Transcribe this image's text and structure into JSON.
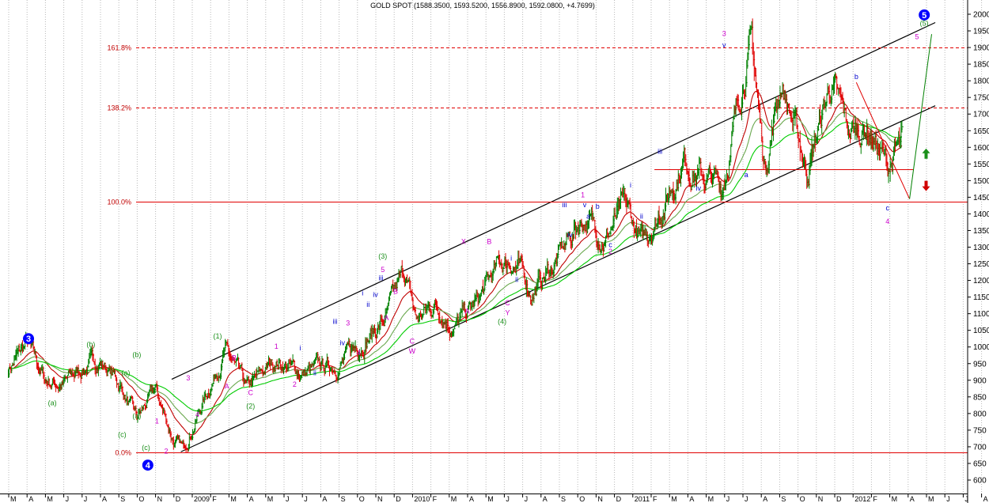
{
  "chart_data": {
    "type": "candlestick",
    "title": "GOLD SPOT (1588.3500, 1593.5200, 1556.8900, 1592.0800, +4.7699)",
    "y_axis": {
      "min": 600,
      "max": 2000,
      "step": 50,
      "ticks": [
        "600",
        "650",
        "700",
        "750",
        "800",
        "850",
        "900",
        "950",
        "1000",
        "1050",
        "1100",
        "1150",
        "1200",
        "1250",
        "1300",
        "1350",
        "1400",
        "1450",
        "1500",
        "1550",
        "1600",
        "1650",
        "1700",
        "1750",
        "1800",
        "1850",
        "1900",
        "1950",
        "2000"
      ]
    },
    "x_axis": {
      "ticks": [
        "M",
        "A",
        "M",
        "J",
        "J",
        "A",
        "S",
        "O",
        "N",
        "D",
        "2009",
        "F",
        "M",
        "A",
        "M",
        "J",
        "J",
        "A",
        "S",
        "O",
        "N",
        "D",
        "2010",
        "F",
        "M",
        "A",
        "M",
        "J",
        "J",
        "A",
        "S",
        "O",
        "N",
        "D",
        "2011",
        "F",
        "M",
        "A",
        "M",
        "J",
        "J",
        "A",
        "S",
        "O",
        "N",
        "D",
        "2012",
        "F",
        "M",
        "A",
        "M",
        "J",
        "J",
        "A"
      ]
    },
    "grid": true,
    "price_path": [
      {
        "month": 0,
        "price": 935
      },
      {
        "month": 1,
        "price": 1010
      },
      {
        "month": 2,
        "price": 900
      },
      {
        "month": 3,
        "price": 890
      },
      {
        "month": 4,
        "price": 935
      },
      {
        "month": 5,
        "price": 960
      },
      {
        "month": 6,
        "price": 895
      },
      {
        "month": 7,
        "price": 780
      },
      {
        "month": 8,
        "price": 870
      },
      {
        "month": 9,
        "price": 720
      },
      {
        "month": 9.5,
        "price": 690
      },
      {
        "month": 10.5,
        "price": 820
      },
      {
        "month": 11.8,
        "price": 990
      },
      {
        "month": 13,
        "price": 870
      },
      {
        "month": 14.5,
        "price": 960
      },
      {
        "month": 16,
        "price": 920
      },
      {
        "month": 18,
        "price": 950
      },
      {
        "month": 20.5,
        "price": 1080
      },
      {
        "month": 21.6,
        "price": 1225
      },
      {
        "month": 22.2,
        "price": 1080
      },
      {
        "month": 23.3,
        "price": 1130
      },
      {
        "month": 24.3,
        "price": 1060
      },
      {
        "month": 25.5,
        "price": 1130
      },
      {
        "month": 26.8,
        "price": 1250
      },
      {
        "month": 27.5,
        "price": 1260
      },
      {
        "month": 28.5,
        "price": 1165
      },
      {
        "month": 29.5,
        "price": 1230
      },
      {
        "month": 31.3,
        "price": 1390
      },
      {
        "month": 32.5,
        "price": 1330
      },
      {
        "month": 33.6,
        "price": 1420
      },
      {
        "month": 34.5,
        "price": 1310
      },
      {
        "month": 35.8,
        "price": 1440
      },
      {
        "month": 36.8,
        "price": 1570
      },
      {
        "month": 37.5,
        "price": 1520
      },
      {
        "month": 38.9,
        "price": 1480
      },
      {
        "month": 40.2,
        "price": 1860
      },
      {
        "month": 40.5,
        "price": 1910
      },
      {
        "month": 41.2,
        "price": 1540
      },
      {
        "month": 42.1,
        "price": 1800
      },
      {
        "month": 43.5,
        "price": 1530
      },
      {
        "month": 44.8,
        "price": 1790
      },
      {
        "month": 45.8,
        "price": 1640
      },
      {
        "month": 46.8,
        "price": 1660
      },
      {
        "month": 47.9,
        "price": 1540
      },
      {
        "month": 48.7,
        "price": 1610
      }
    ],
    "moving_averages": [
      {
        "color": "#c00000",
        "lag": 1.3
      },
      {
        "color": "#6aa84f",
        "lag": 2.5
      },
      {
        "color": "#00cc00",
        "lag": 4.5
      }
    ],
    "fibonacci_levels": [
      {
        "label": "161.8%",
        "price": 1900
      },
      {
        "label": "138.2%",
        "price": 1720
      },
      {
        "label": "100.0%",
        "price": 1437
      },
      {
        "label": "0.0%",
        "price": 683
      }
    ],
    "support_line": {
      "from_month": 35.2,
      "to_month": 49.3,
      "price": 1535
    },
    "channel_lines": [
      {
        "from": [
          8.9,
          903
        ],
        "to": [
          50.5,
          1975
        ]
      },
      {
        "from": [
          9.4,
          685
        ],
        "to": [
          50.5,
          1725
        ]
      }
    ],
    "projection": {
      "red_path": [
        [
          46.2,
          1795
        ],
        [
          47.3,
          1660
        ],
        [
          49.1,
          1445
        ]
      ],
      "green_path": [
        [
          49.1,
          1445
        ],
        [
          50.3,
          1940
        ]
      ]
    },
    "arrows": [
      {
        "direction": "up",
        "color": "#1a8f1a",
        "month": 50.0,
        "price": 1580
      },
      {
        "direction": "down",
        "color": "#d00000",
        "month": 50.0,
        "price": 1485
      }
    ],
    "wave_labels": [
      {
        "text": "3",
        "month": 1.1,
        "price": 1025,
        "color": "#0000ff",
        "circle": true
      },
      {
        "text": "4",
        "month": 7.6,
        "price": 645,
        "color": "#0000ff",
        "circle": true
      },
      {
        "text": "5",
        "month": 49.9,
        "price": 1998,
        "color": "#0000ff",
        "circle": true
      },
      {
        "text": "(a)",
        "month": 2.4,
        "price": 825,
        "color": "#1a8f1a"
      },
      {
        "text": "(b)",
        "month": 4.5,
        "price": 1000,
        "color": "#1a8f1a"
      },
      {
        "text": "(c)",
        "month": 6.2,
        "price": 730,
        "color": "#1a8f1a"
      },
      {
        "text": "(a)",
        "month": 6.4,
        "price": 915,
        "color": "#1a8f1a"
      },
      {
        "text": "(b)",
        "month": 7.0,
        "price": 970,
        "color": "#1a8f1a"
      },
      {
        "text": "(a)",
        "month": 7.0,
        "price": 785,
        "color": "#1a8f1a"
      },
      {
        "text": "(c)",
        "month": 7.5,
        "price": 690,
        "color": "#1a8f1a"
      },
      {
        "text": "(1)",
        "month": 11.4,
        "price": 1025,
        "color": "#1a8f1a"
      },
      {
        "text": "(2)",
        "month": 13.2,
        "price": 815,
        "color": "#1a8f1a"
      },
      {
        "text": "(3)",
        "month": 20.4,
        "price": 1265,
        "color": "#1a8f1a"
      },
      {
        "text": "(4)",
        "month": 26.9,
        "price": 1070,
        "color": "#1a8f1a"
      },
      {
        "text": "(5)",
        "month": 49.9,
        "price": 1965,
        "color": "#1a8f1a"
      },
      {
        "text": "1",
        "month": 8.1,
        "price": 770,
        "color": "#cc00cc"
      },
      {
        "text": "2",
        "month": 8.6,
        "price": 680,
        "color": "#cc00cc"
      },
      {
        "text": "3",
        "month": 9.8,
        "price": 900,
        "color": "#cc00cc"
      },
      {
        "text": "4",
        "month": 10.3,
        "price": 790,
        "color": "#cc00cc"
      },
      {
        "text": "B",
        "month": 12.3,
        "price": 960,
        "color": "#cc00cc"
      },
      {
        "text": "A",
        "month": 11.9,
        "price": 875,
        "color": "#cc00cc"
      },
      {
        "text": "C",
        "month": 13.2,
        "price": 855,
        "color": "#cc00cc"
      },
      {
        "text": "1",
        "month": 14.6,
        "price": 995,
        "color": "#cc00cc"
      },
      {
        "text": "2",
        "month": 15.6,
        "price": 880,
        "color": "#cc00cc"
      },
      {
        "text": "3",
        "month": 18.5,
        "price": 1065,
        "color": "#cc00cc"
      },
      {
        "text": "4",
        "month": 19.1,
        "price": 975,
        "color": "#cc00cc"
      },
      {
        "text": "5",
        "month": 20.4,
        "price": 1225,
        "color": "#cc00cc"
      },
      {
        "text": "A",
        "month": 20.6,
        "price": 1080,
        "color": "#cc00cc"
      },
      {
        "text": "B",
        "month": 21.1,
        "price": 1160,
        "color": "#cc00cc"
      },
      {
        "text": "C",
        "month": 22.0,
        "price": 1010,
        "color": "#cc00cc"
      },
      {
        "text": "W",
        "month": 22.0,
        "price": 980,
        "color": "#cc00cc"
      },
      {
        "text": "X",
        "month": 24.8,
        "price": 1310,
        "color": "#cc00cc"
      },
      {
        "text": "A",
        "month": 25.0,
        "price": 1100,
        "color": "#cc00cc"
      },
      {
        "text": "B",
        "month": 26.2,
        "price": 1310,
        "color": "#cc00cc"
      },
      {
        "text": "C",
        "month": 27.2,
        "price": 1125,
        "color": "#cc00cc"
      },
      {
        "text": "Y",
        "month": 27.2,
        "price": 1095,
        "color": "#cc00cc"
      },
      {
        "text": "1",
        "month": 31.3,
        "price": 1450,
        "color": "#cc00cc"
      },
      {
        "text": "2",
        "month": 32.8,
        "price": 1280,
        "color": "#cc00cc"
      },
      {
        "text": "3",
        "month": 39.0,
        "price": 1935,
        "color": "#cc00cc"
      },
      {
        "text": "4",
        "month": 47.9,
        "price": 1370,
        "color": "#cc00cc"
      },
      {
        "text": "5",
        "month": 49.5,
        "price": 1925,
        "color": "#cc00cc"
      },
      {
        "text": "i",
        "month": 15.9,
        "price": 990,
        "color": "#0000cc"
      },
      {
        "text": "ii",
        "month": 16.7,
        "price": 915,
        "color": "#0000cc"
      },
      {
        "text": "iii",
        "month": 17.8,
        "price": 1070,
        "color": "#0000cc"
      },
      {
        "text": "iv",
        "month": 18.2,
        "price": 1005,
        "color": "#0000cc"
      },
      {
        "text": "i",
        "month": 19.3,
        "price": 1155,
        "color": "#0000cc"
      },
      {
        "text": "ii",
        "month": 19.6,
        "price": 1120,
        "color": "#0000cc"
      },
      {
        "text": "iii",
        "month": 20.3,
        "price": 1200,
        "color": "#0000cc"
      },
      {
        "text": "iv",
        "month": 20.0,
        "price": 1150,
        "color": "#0000cc"
      },
      {
        "text": "i",
        "month": 27.4,
        "price": 1260,
        "color": "#0000cc"
      },
      {
        "text": "ii",
        "month": 27.7,
        "price": 1195,
        "color": "#0000cc"
      },
      {
        "text": "iii",
        "month": 30.3,
        "price": 1420,
        "color": "#0000cc"
      },
      {
        "text": "iv",
        "month": 30.6,
        "price": 1330,
        "color": "#0000cc"
      },
      {
        "text": "v",
        "month": 31.4,
        "price": 1420,
        "color": "#0000cc"
      },
      {
        "text": "a",
        "month": 31.6,
        "price": 1385,
        "color": "#0000cc"
      },
      {
        "text": "b",
        "month": 32.1,
        "price": 1415,
        "color": "#0000cc"
      },
      {
        "text": "c",
        "month": 32.8,
        "price": 1300,
        "color": "#0000cc"
      },
      {
        "text": "i",
        "month": 33.9,
        "price": 1480,
        "color": "#0000cc"
      },
      {
        "text": "ii",
        "month": 34.5,
        "price": 1385,
        "color": "#0000cc"
      },
      {
        "text": "iii",
        "month": 35.5,
        "price": 1580,
        "color": "#0000cc"
      },
      {
        "text": "iv",
        "month": 37.6,
        "price": 1470,
        "color": "#0000cc"
      },
      {
        "text": "v",
        "month": 39.0,
        "price": 1900,
        "color": "#0000cc"
      },
      {
        "text": "a",
        "month": 40.2,
        "price": 1510,
        "color": "#0000cc"
      },
      {
        "text": "b",
        "month": 46.2,
        "price": 1805,
        "color": "#0000cc"
      },
      {
        "text": "c",
        "month": 47.9,
        "price": 1410,
        "color": "#0000cc"
      }
    ]
  }
}
